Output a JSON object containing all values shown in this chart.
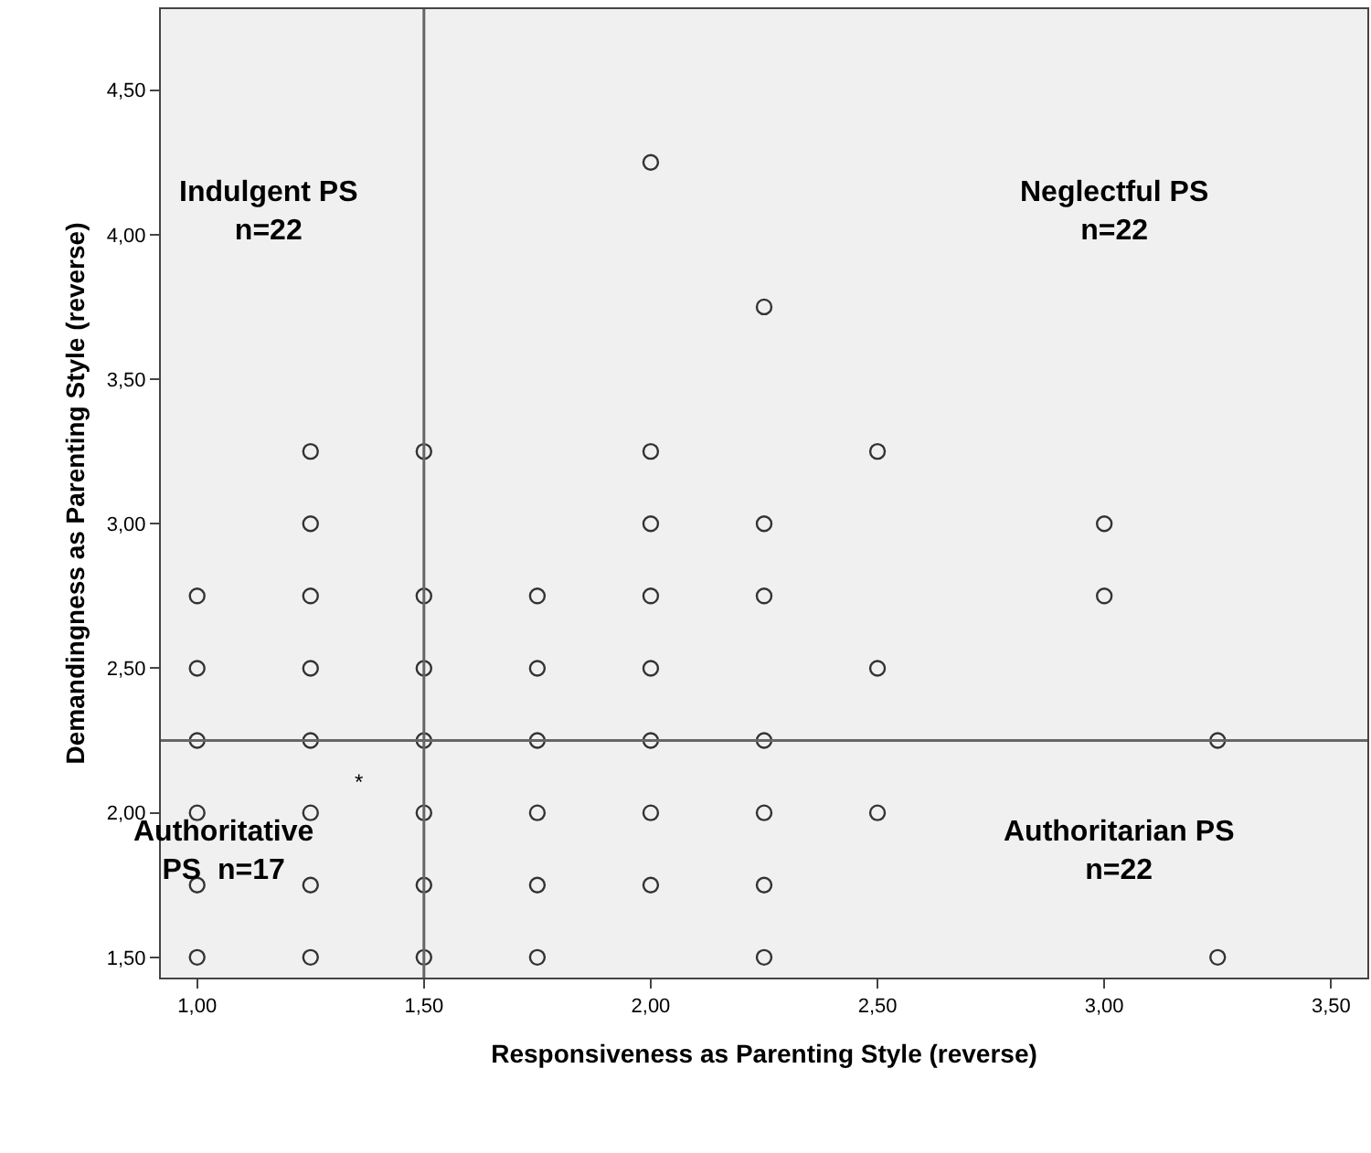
{
  "chart_data": {
    "type": "scatter",
    "xlabel": "Responsiveness as Parenting Style (reverse)",
    "ylabel": "Demandingness as Parenting Style (reverse)",
    "x": [
      1.0,
      1.0,
      1.0,
      1.0,
      1.0,
      1.0,
      1.25,
      1.25,
      1.25,
      1.25,
      1.25,
      1.25,
      1.25,
      1.25,
      1.5,
      1.5,
      1.5,
      1.5,
      1.5,
      1.5,
      1.5,
      1.75,
      1.75,
      1.75,
      1.75,
      1.75,
      1.75,
      2.0,
      2.0,
      2.0,
      2.0,
      2.0,
      2.0,
      2.0,
      2.0,
      2.25,
      2.25,
      2.25,
      2.25,
      2.25,
      2.25,
      2.25,
      2.5,
      2.5,
      2.5,
      3.0,
      3.0,
      3.25,
      3.25
    ],
    "series": [
      {
        "color": "#333333",
        "values": [
          2.75,
          2.5,
          2.25,
          2.0,
          1.75,
          1.5,
          3.25,
          3.0,
          2.75,
          2.5,
          2.25,
          2.0,
          1.75,
          1.5,
          3.25,
          2.75,
          2.5,
          2.25,
          2.0,
          1.75,
          1.5,
          2.75,
          2.5,
          2.25,
          2.0,
          1.75,
          1.5,
          4.25,
          3.25,
          3.0,
          2.75,
          2.5,
          2.25,
          2.0,
          1.75,
          3.75,
          3.0,
          2.75,
          2.25,
          2.0,
          1.75,
          1.5,
          3.25,
          2.5,
          2.0,
          3.0,
          2.75,
          2.25,
          1.5
        ]
      }
    ],
    "marker": "circle",
    "xlim": [
      0.92,
      3.58
    ],
    "ylim": [
      1.43,
      4.78
    ],
    "xticks": [
      {
        "value": 1.0,
        "label": "1,00"
      },
      {
        "value": 1.5,
        "label": "1,50"
      },
      {
        "value": 2.0,
        "label": "2,00"
      },
      {
        "value": 2.5,
        "label": "2,50"
      },
      {
        "value": 3.0,
        "label": "3,00"
      },
      {
        "value": 3.5,
        "label": "3,50"
      }
    ],
    "yticks": [
      {
        "value": 1.5,
        "label": "1,50"
      },
      {
        "value": 2.0,
        "label": "2,00"
      },
      {
        "value": 2.5,
        "label": "2,50"
      },
      {
        "value": 3.0,
        "label": "3,00"
      },
      {
        "value": 3.5,
        "label": "3,50"
      },
      {
        "value": 4.0,
        "label": "4,00"
      },
      {
        "value": 4.5,
        "label": "4,50"
      }
    ],
    "ref_lines": [
      {
        "axis": "x",
        "value": 1.5,
        "color": "#666666"
      },
      {
        "axis": "y",
        "value": 2.25,
        "color": "#666666"
      }
    ],
    "annotations": [
      "Indulgent PS\nn=22",
      "Neglectful PS\nn=22",
      "Authoritative\nPS  n=17",
      "Authoritarian PS\nn=22",
      "*"
    ],
    "grid": false
  }
}
